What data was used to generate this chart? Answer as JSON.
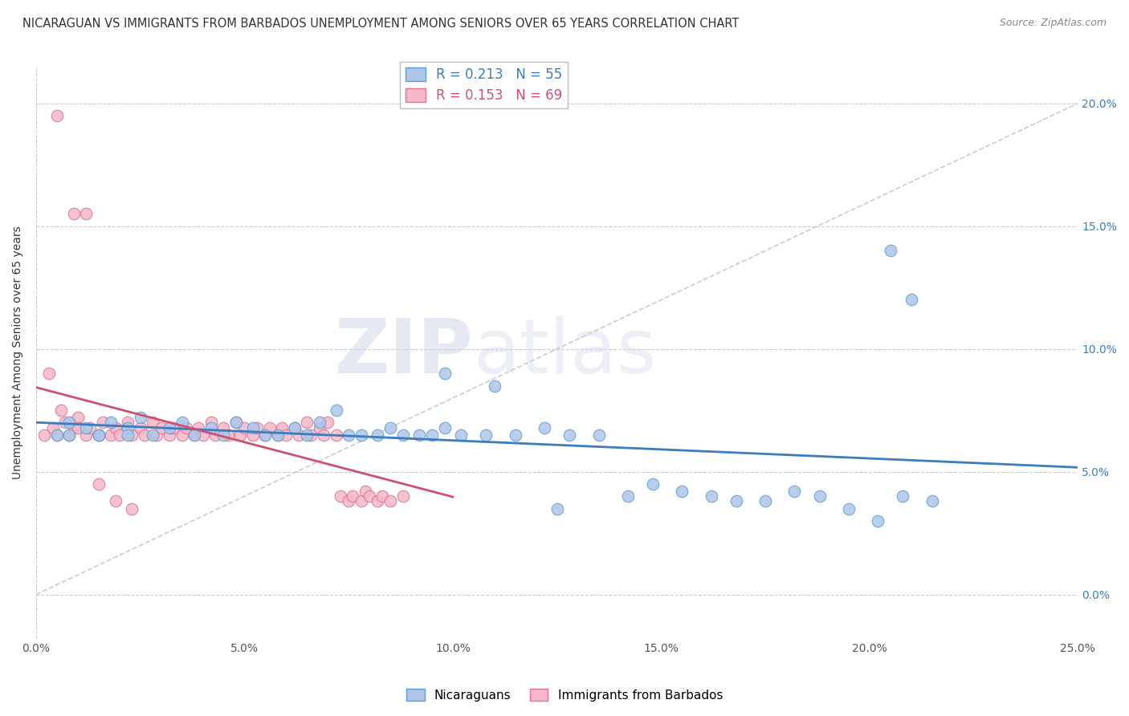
{
  "title": "NICARAGUAN VS IMMIGRANTS FROM BARBADOS UNEMPLOYMENT AMONG SENIORS OVER 65 YEARS CORRELATION CHART",
  "source": "Source: ZipAtlas.com",
  "ylabel": "Unemployment Among Seniors over 65 years",
  "xlim": [
    0.0,
    0.25
  ],
  "ylim": [
    -0.018,
    0.215
  ],
  "xticks": [
    0.0,
    0.05,
    0.1,
    0.15,
    0.2,
    0.25
  ],
  "xticklabels": [
    "0.0%",
    "5.0%",
    "10.0%",
    "15.0%",
    "20.0%",
    "25.0%"
  ],
  "yticks": [
    0.0,
    0.05,
    0.1,
    0.15,
    0.2
  ],
  "yticklabels": [
    "0.0%",
    "5.0%",
    "10.0%",
    "15.0%",
    "20.0%"
  ],
  "right_yticklabels": [
    "0.0%",
    "5.0%",
    "10.0%",
    "15.0%",
    "20.0%"
  ],
  "blue_color": "#AEC6E8",
  "blue_edge_color": "#5A9FD4",
  "pink_color": "#F4B8C8",
  "pink_edge_color": "#E07090",
  "blue_line_color": "#3A7DBF",
  "pink_line_color": "#D05070",
  "diag_line_color": "#CCCCCC",
  "R_blue": 0.213,
  "N_blue": 55,
  "R_pink": 0.153,
  "N_pink": 69,
  "watermark_zip": "ZIP",
  "watermark_atlas": "atlas",
  "background_color": "#FFFFFF",
  "grid_color": "#CCCCCC",
  "blue_scatter_x": [
    0.005,
    0.008,
    0.012,
    0.015,
    0.018,
    0.022,
    0.025,
    0.028,
    0.032,
    0.035,
    0.038,
    0.042,
    0.045,
    0.048,
    0.052,
    0.055,
    0.058,
    0.062,
    0.065,
    0.068,
    0.072,
    0.075,
    0.078,
    0.082,
    0.085,
    0.088,
    0.092,
    0.095,
    0.098,
    0.102,
    0.108,
    0.115,
    0.122,
    0.128,
    0.135,
    0.142,
    0.148,
    0.155,
    0.162,
    0.168,
    0.175,
    0.182,
    0.188,
    0.195,
    0.202,
    0.208,
    0.215,
    0.008,
    0.015,
    0.022,
    0.205,
    0.21,
    0.098,
    0.11,
    0.125
  ],
  "blue_scatter_y": [
    0.065,
    0.07,
    0.068,
    0.065,
    0.07,
    0.068,
    0.072,
    0.065,
    0.068,
    0.07,
    0.065,
    0.068,
    0.065,
    0.07,
    0.068,
    0.065,
    0.065,
    0.068,
    0.065,
    0.07,
    0.075,
    0.065,
    0.065,
    0.065,
    0.068,
    0.065,
    0.065,
    0.065,
    0.068,
    0.065,
    0.065,
    0.065,
    0.068,
    0.065,
    0.065,
    0.04,
    0.045,
    0.042,
    0.04,
    0.038,
    0.038,
    0.042,
    0.04,
    0.035,
    0.03,
    0.04,
    0.038,
    0.065,
    0.065,
    0.065,
    0.14,
    0.12,
    0.09,
    0.085,
    0.035
  ],
  "pink_scatter_x": [
    0.002,
    0.004,
    0.005,
    0.007,
    0.008,
    0.009,
    0.01,
    0.012,
    0.013,
    0.015,
    0.016,
    0.018,
    0.019,
    0.02,
    0.022,
    0.023,
    0.025,
    0.026,
    0.028,
    0.029,
    0.03,
    0.032,
    0.033,
    0.035,
    0.036,
    0.038,
    0.039,
    0.04,
    0.042,
    0.043,
    0.045,
    0.046,
    0.048,
    0.049,
    0.05,
    0.052,
    0.053,
    0.055,
    0.056,
    0.058,
    0.059,
    0.06,
    0.062,
    0.063,
    0.065,
    0.066,
    0.068,
    0.069,
    0.07,
    0.072,
    0.073,
    0.075,
    0.076,
    0.078,
    0.079,
    0.08,
    0.082,
    0.083,
    0.085,
    0.088,
    0.005,
    0.009,
    0.012,
    0.003,
    0.006,
    0.01,
    0.015,
    0.019,
    0.023
  ],
  "pink_scatter_y": [
    0.065,
    0.068,
    0.065,
    0.07,
    0.065,
    0.068,
    0.072,
    0.065,
    0.068,
    0.065,
    0.07,
    0.065,
    0.068,
    0.065,
    0.07,
    0.065,
    0.068,
    0.065,
    0.07,
    0.065,
    0.068,
    0.065,
    0.068,
    0.065,
    0.068,
    0.065,
    0.068,
    0.065,
    0.07,
    0.065,
    0.068,
    0.065,
    0.07,
    0.065,
    0.068,
    0.065,
    0.068,
    0.065,
    0.068,
    0.065,
    0.068,
    0.065,
    0.068,
    0.065,
    0.07,
    0.065,
    0.068,
    0.065,
    0.07,
    0.065,
    0.04,
    0.038,
    0.04,
    0.038,
    0.042,
    0.04,
    0.038,
    0.04,
    0.038,
    0.04,
    0.195,
    0.155,
    0.155,
    0.09,
    0.075,
    0.068,
    0.045,
    0.038,
    0.035
  ]
}
